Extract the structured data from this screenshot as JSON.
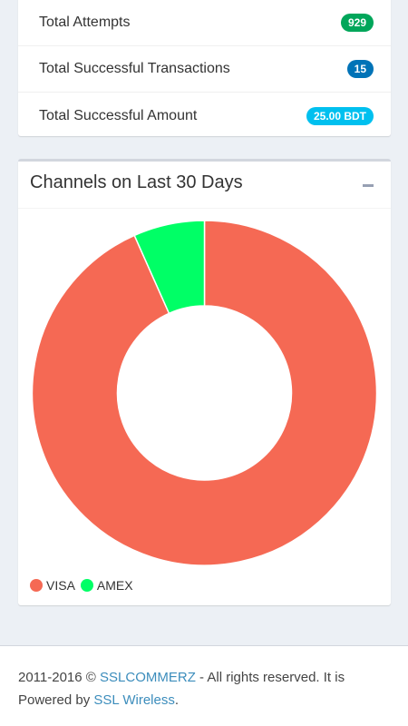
{
  "stats": [
    {
      "label": "Total Attempts",
      "value": "929",
      "color": "#00a65a"
    },
    {
      "label": "Total Successful Transactions",
      "value": "15",
      "color": "#0073b7"
    },
    {
      "label": "Total Successful Amount",
      "value": "25.00 BDT",
      "color": "#00c0ef"
    }
  ],
  "chart_box": {
    "title": "Channels on Last 30 Days",
    "collapse_icon": "minus-icon"
  },
  "chart_data": {
    "type": "pie",
    "variant": "doughnut",
    "labels": [
      "VISA",
      "AMEX"
    ],
    "values": [
      14,
      1
    ],
    "colors": [
      "#f56954",
      "#00ff66"
    ],
    "legend_position": "bottom-left"
  },
  "footer": {
    "years": "2011-2016 ©",
    "brand_link": "SSLCOMMERZ",
    "rights_text": "- All rights reserved. It is Powered by",
    "powered_link": "SSL Wireless",
    "end_punct": "."
  }
}
